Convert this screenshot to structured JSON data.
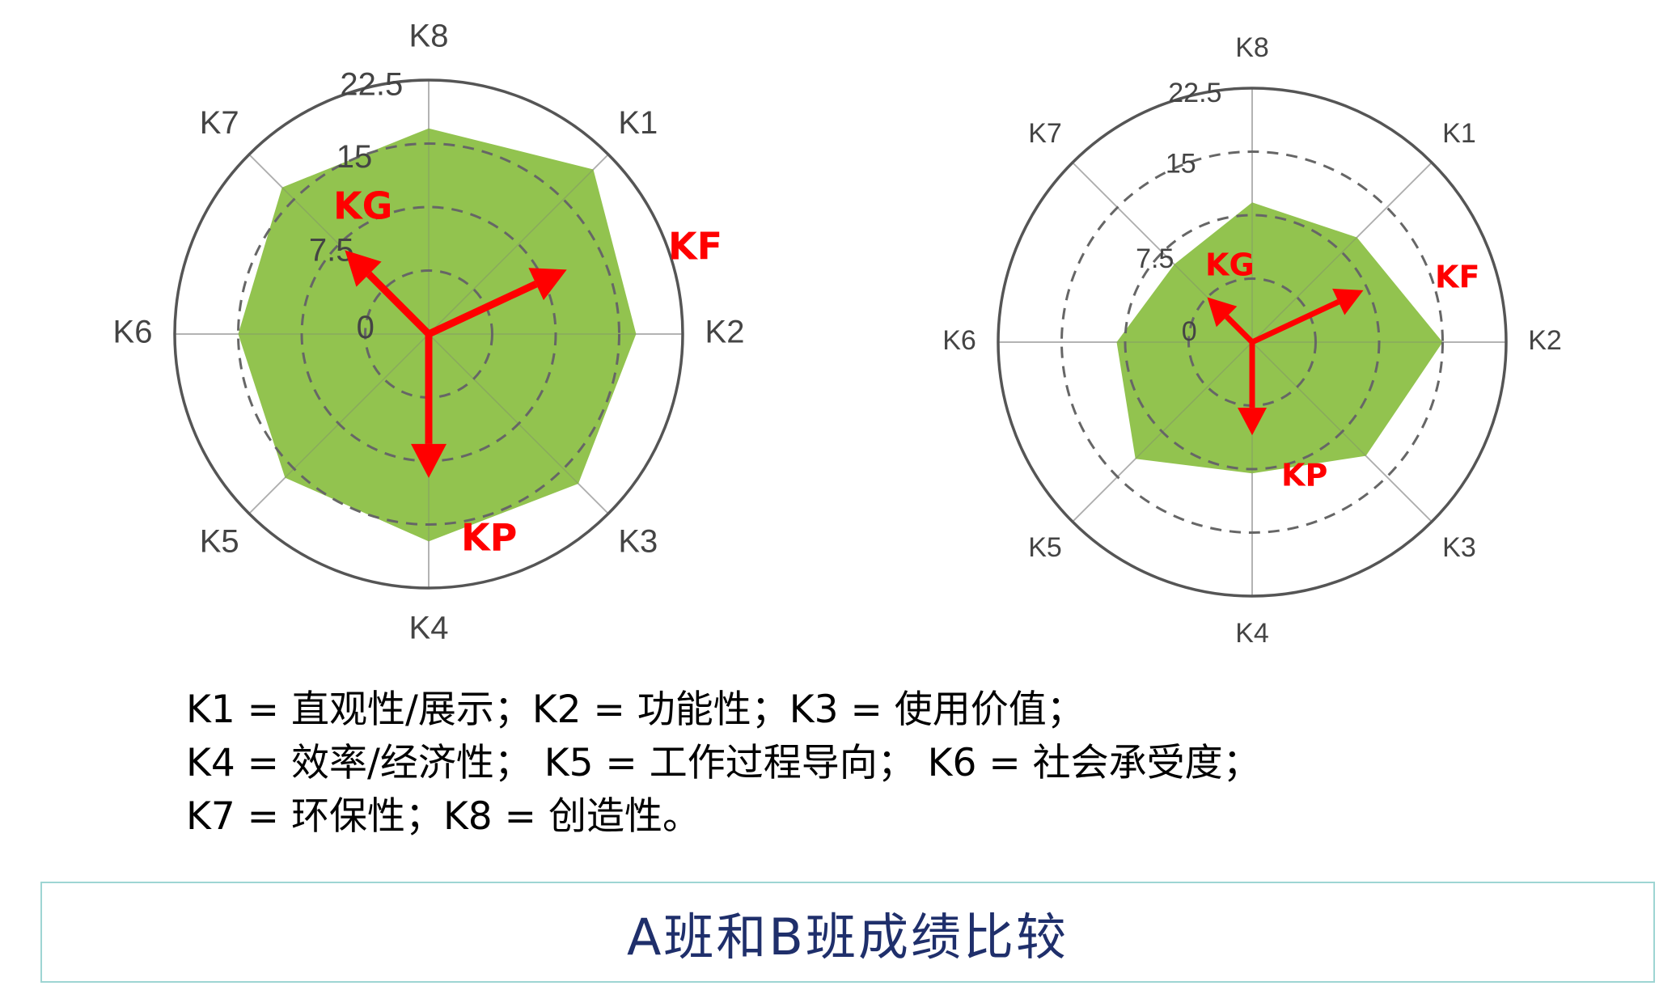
{
  "chart_data": [
    {
      "type": "radar",
      "axes": [
        "K1",
        "K2",
        "K3",
        "K4",
        "K5",
        "K6",
        "K7",
        "K8"
      ],
      "values": [
        20,
        17,
        17.5,
        17,
        16.5,
        15,
        17,
        16.8
      ],
      "r_ticks": [
        "0",
        "7.5",
        "15",
        "22.5"
      ],
      "rlim": [
        -7.5,
        22.5
      ],
      "fill_color": "#92c34f",
      "vectors": [
        {
          "name": "KF",
          "angle_deg": 25,
          "value": 18
        },
        {
          "name": "KG",
          "angle_deg": 135,
          "value": 14
        },
        {
          "name": "KP",
          "angle_deg": 270,
          "value": 17
        }
      ]
    },
    {
      "type": "radar",
      "axes": [
        "K1",
        "K2",
        "K3",
        "K4",
        "K5",
        "K6",
        "K7",
        "K8"
      ],
      "values": [
        10,
        15,
        11.5,
        8,
        12,
        8.5,
        5.5,
        9
      ],
      "r_ticks": [
        "0",
        "7.5",
        "15",
        "22.5"
      ],
      "rlim": [
        -7.5,
        22.5
      ],
      "fill_color": "#92c34f",
      "vectors": [
        {
          "name": "KF",
          "angle_deg": 25,
          "value": 14.5
        },
        {
          "name": "KG",
          "angle_deg": 135,
          "value": 7.5
        },
        {
          "name": "KP",
          "angle_deg": 270,
          "value": 11
        }
      ]
    }
  ],
  "legend": {
    "line1": "K1 = 直观性/展示；K2 = 功能性；K3 = 使用价值；",
    "line2": "K4 = 效率/经济性；  K5 = 工作过程导向；  K6 = 社会承受度；",
    "line3": "K7 = 环保性；K8 = 创造性。"
  },
  "caption": "A班和B班成绩比较",
  "colors": {
    "vector": "#ff0000",
    "fill": "#92c34f",
    "caption_text": "#1f2f6b",
    "caption_border": "#9ed5d3"
  }
}
